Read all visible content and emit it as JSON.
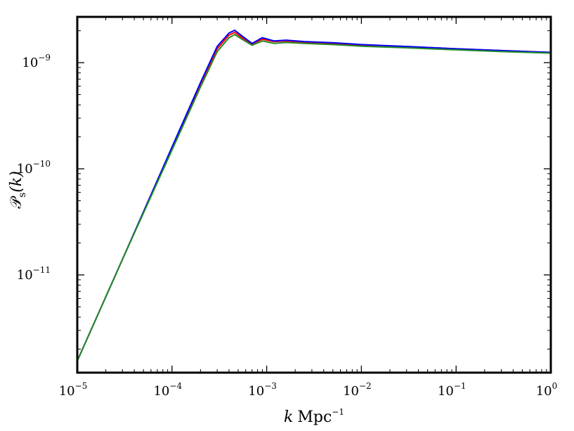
{
  "chart_data": {
    "type": "line",
    "title": "",
    "xlabel": {
      "var": "k",
      "unit": "Mpc",
      "exp": "−1"
    },
    "ylabel": {
      "main": "𝒫",
      "sub": "s",
      "arg": "(k)"
    },
    "xscale": "log",
    "yscale": "log",
    "xlim": [
      1e-05,
      1
    ],
    "ylim": [
      1.2e-12,
      2.7e-09
    ],
    "grid": false,
    "legend": "none",
    "x_ticks": [
      {
        "value": 1e-05,
        "base": "10",
        "exp": "−5"
      },
      {
        "value": 0.0001,
        "base": "10",
        "exp": "−4"
      },
      {
        "value": 0.001,
        "base": "10",
        "exp": "−3"
      },
      {
        "value": 0.01,
        "base": "10",
        "exp": "−2"
      },
      {
        "value": 0.1,
        "base": "10",
        "exp": "−1"
      },
      {
        "value": 1,
        "base": "10",
        "exp": "0"
      }
    ],
    "y_ticks": [
      {
        "value": 1e-11,
        "base": "10",
        "exp": "−11"
      },
      {
        "value": 1e-10,
        "base": "10",
        "exp": "−10"
      },
      {
        "value": 1e-09,
        "base": "10",
        "exp": "−9"
      }
    ],
    "series": [
      {
        "color": "#ff0000",
        "x": [
          1e-05,
          3e-05,
          0.0001,
          0.0002,
          0.0003,
          0.0004,
          0.00046,
          0.00055,
          0.0007,
          0.0009,
          0.0012,
          0.0016,
          0.0025,
          0.005,
          0.01,
          0.03,
          0.1,
          0.3,
          1
        ],
        "y": [
          1.55e-12,
          1.4e-11,
          1.55e-10,
          6.2e-10,
          1.35e-09,
          1.82e-09,
          1.93e-09,
          1.72e-09,
          1.5e-09,
          1.66e-09,
          1.58e-09,
          1.6e-09,
          1.56e-09,
          1.52e-09,
          1.47e-09,
          1.42e-09,
          1.35e-09,
          1.3e-09,
          1.25e-09
        ]
      },
      {
        "color": "#0000ff",
        "x": [
          1e-05,
          3e-05,
          0.0001,
          0.0002,
          0.0003,
          0.0004,
          0.00046,
          0.00055,
          0.0007,
          0.0009,
          0.0012,
          0.0016,
          0.0025,
          0.005,
          0.01,
          0.03,
          0.1,
          0.3,
          1
        ],
        "y": [
          1.55e-12,
          1.4e-11,
          1.6e-10,
          6.5e-10,
          1.42e-09,
          1.9e-09,
          2.02e-09,
          1.78e-09,
          1.52e-09,
          1.72e-09,
          1.6e-09,
          1.63e-09,
          1.58e-09,
          1.54e-09,
          1.48e-09,
          1.42e-09,
          1.35e-09,
          1.3e-09,
          1.25e-09
        ]
      },
      {
        "color": "#228b22",
        "x": [
          1e-05,
          3e-05,
          0.0001,
          0.0002,
          0.0003,
          0.0004,
          0.00046,
          0.00055,
          0.0007,
          0.0009,
          0.0012,
          0.0016,
          0.0025,
          0.005,
          0.01,
          0.03,
          0.1,
          0.3,
          1
        ],
        "y": [
          1.55e-12,
          1.4e-11,
          1.5e-10,
          5.9e-10,
          1.27e-09,
          1.72e-09,
          1.84e-09,
          1.66e-09,
          1.46e-09,
          1.6e-09,
          1.52e-09,
          1.55e-09,
          1.52e-09,
          1.48e-09,
          1.43e-09,
          1.38e-09,
          1.32e-09,
          1.27e-09,
          1.23e-09
        ]
      }
    ]
  }
}
